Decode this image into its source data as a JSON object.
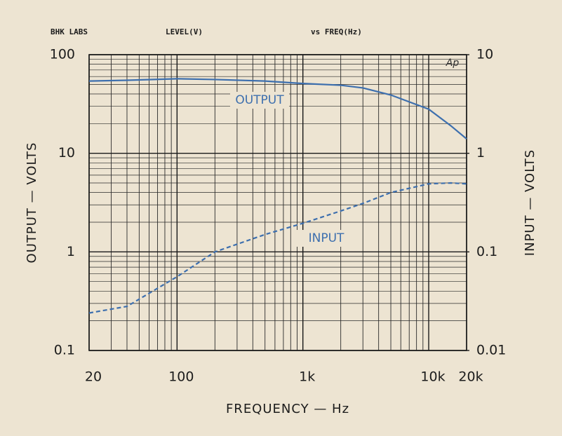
{
  "chart_data": {
    "type": "line",
    "annotations": [
      "BHK LABS",
      "LEVEL(V)",
      "vs FREQ(Hz)",
      "Ap"
    ],
    "xlabel": "FREQUENCY — Hz",
    "ylabel": "OUTPUT — VOLTS",
    "y2label": "INPUT — VOLTS",
    "log_x": true,
    "log_y": true,
    "grid": true,
    "x": [
      20,
      40,
      100,
      200,
      500,
      1000,
      2000,
      3000,
      5000,
      10000,
      15000,
      20000
    ],
    "series": [
      {
        "name": "OUTPUT",
        "color": "#3d6fae",
        "dashed": false,
        "values": [
          54,
          55,
          57,
          56,
          54,
          51,
          49,
          46,
          39,
          28,
          19,
          14
        ]
      },
      {
        "name": "INPUT",
        "color": "#3d6fae",
        "dashed": true,
        "axis": "y2",
        "values": [
          0.024,
          0.028,
          0.056,
          0.1,
          0.15,
          0.195,
          0.26,
          0.31,
          0.4,
          0.49,
          0.5,
          0.49
        ]
      }
    ],
    "xlim": [
      20,
      20000
    ],
    "xticks": [
      20,
      100,
      {
        "value": 1000,
        "label": "1k"
      },
      {
        "value": 10000,
        "label": "10k"
      },
      {
        "value": 20000,
        "label": "20k"
      }
    ],
    "ylim": [
      0.1,
      100
    ],
    "yticks": [
      0.1,
      1,
      10,
      100
    ],
    "y2lim": [
      0.01,
      10
    ],
    "y2ticks": [
      0.01,
      0.1,
      1,
      10
    ]
  }
}
